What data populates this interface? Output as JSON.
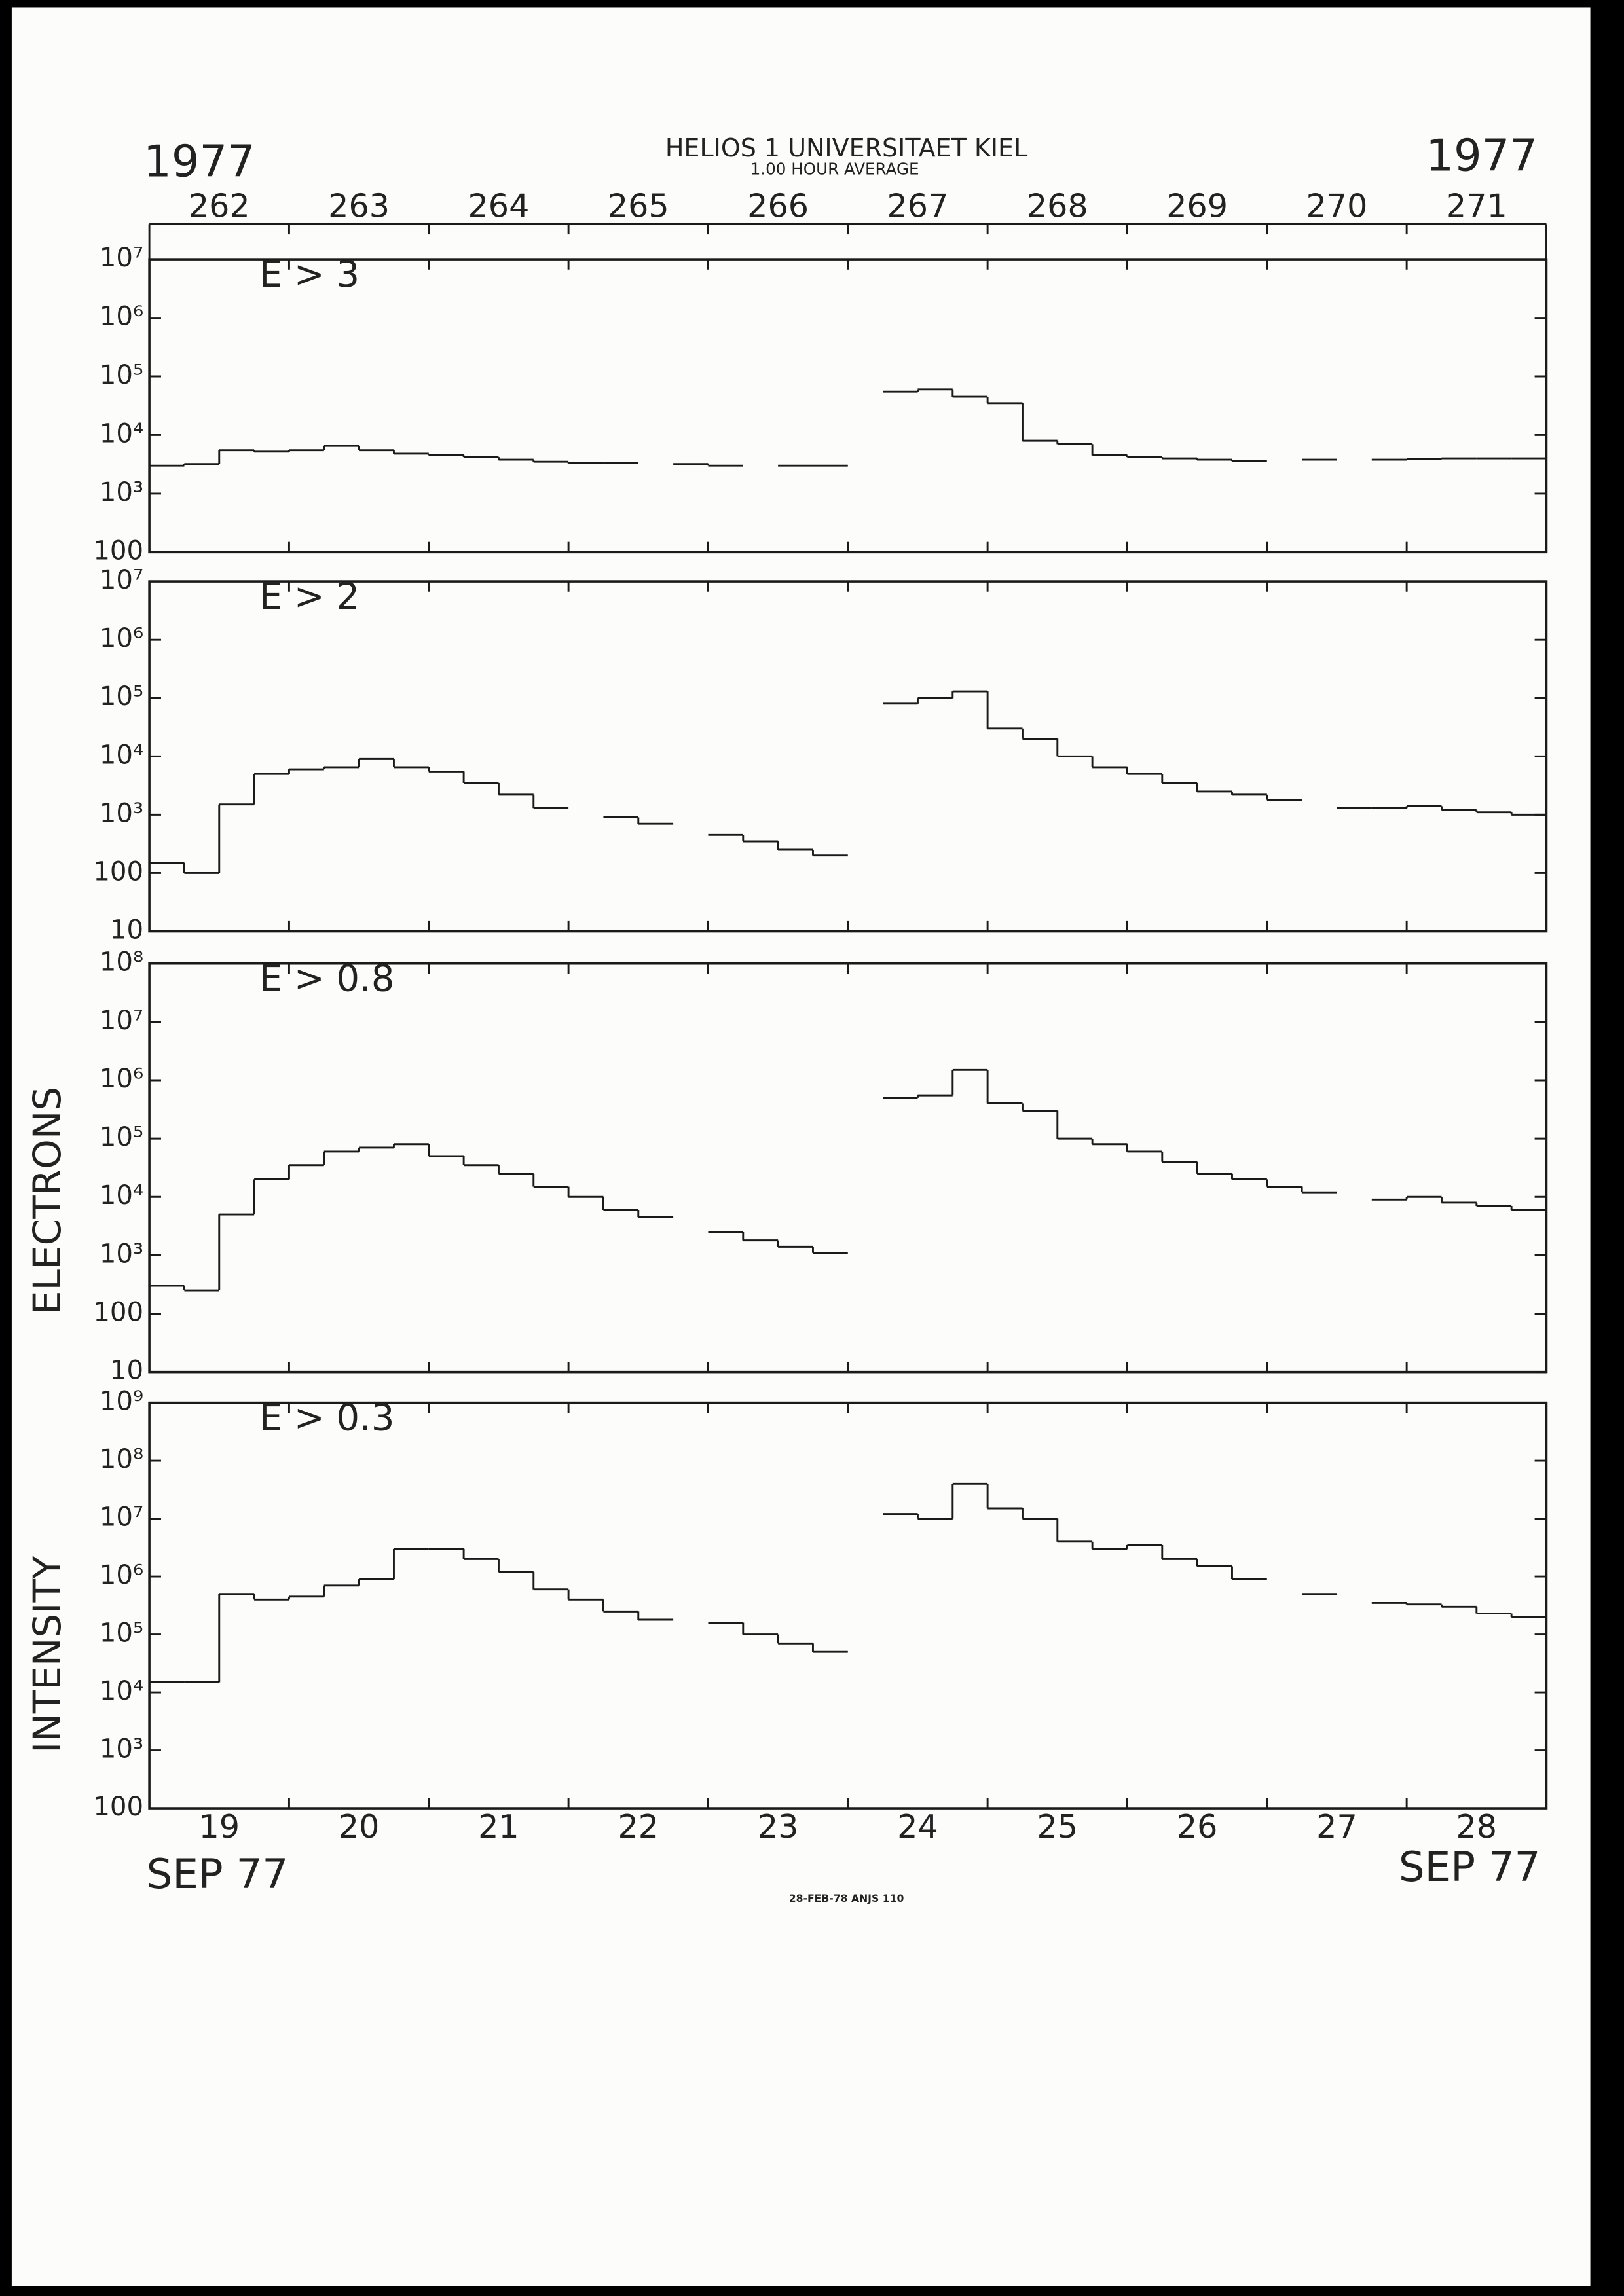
{
  "header": {
    "title": "HELIOS 1  UNIVERSITAET KIEL",
    "subtitle": "1.00 HOUR AVERAGE",
    "year_left": "1977",
    "year_right": "1977"
  },
  "footer": {
    "month_left": "SEP 77",
    "month_right": "SEP 77",
    "stamp": "28-FEB-78 ANJS 110"
  },
  "y_label_parts": [
    "INTENSITY",
    "ELECTRONS"
  ],
  "chart_data": [
    {
      "type": "step",
      "title": "E > 3",
      "ylog": true,
      "xlim": [
        19,
        29
      ],
      "xticks": [
        20,
        21,
        22,
        23,
        24,
        25,
        26,
        27,
        28
      ],
      "x2labels": [
        {
          "value": 19.5,
          "label": "262"
        },
        {
          "value": 20.5,
          "label": "263"
        },
        {
          "value": 21.5,
          "label": "264"
        },
        {
          "value": 22.5,
          "label": "265"
        },
        {
          "value": 23.5,
          "label": "266"
        },
        {
          "value": 24.5,
          "label": "267"
        },
        {
          "value": 25.5,
          "label": "268"
        },
        {
          "value": 26.5,
          "label": "269"
        },
        {
          "value": 27.5,
          "label": "270"
        },
        {
          "value": 28.5,
          "label": "271"
        }
      ],
      "ylim": [
        100,
        10000000
      ],
      "yticks": [
        100,
        {
          "value": 1000,
          "label": "10³"
        },
        {
          "value": 10000,
          "label": "10⁴"
        },
        {
          "value": 100000,
          "label": "10⁵"
        },
        {
          "value": 1000000,
          "label": "10⁶"
        },
        {
          "value": 10000000,
          "label": "10⁷"
        }
      ],
      "color": "#1a1a1a",
      "x": [
        19,
        19.25,
        19.5,
        19.75,
        20,
        20.25,
        20.5,
        20.75,
        21,
        21.25,
        21.5,
        21.75,
        22,
        22.25,
        22.5,
        22.75,
        23,
        23.25,
        23.5,
        23.75,
        24,
        24.25,
        24.5,
        24.75,
        25,
        25.25,
        25.5,
        25.75,
        26,
        26.25,
        26.5,
        26.75,
        27,
        27.25,
        27.5,
        27.75,
        28,
        28.25,
        28.5,
        28.75
      ],
      "values": [
        3000,
        3200,
        5500,
        5200,
        5500,
        6500,
        5500,
        4800,
        4500,
        4200,
        3800,
        3500,
        3300,
        3300,
        null,
        3200,
        3000,
        null,
        3000,
        3000,
        null,
        55000,
        60000,
        45000,
        35000,
        8000,
        7000,
        4500,
        4200,
        4000,
        3800,
        3600,
        null,
        3800,
        null,
        3800,
        3900,
        4000,
        4000,
        4000
      ]
    },
    {
      "type": "step",
      "title": "E > 2",
      "ylog": true,
      "xlim": [
        19,
        29
      ],
      "xticks": [
        20,
        21,
        22,
        23,
        24,
        25,
        26,
        27,
        28
      ],
      "ylim": [
        10,
        10000000
      ],
      "yticks": [
        10,
        100,
        {
          "value": 1000,
          "label": "10³"
        },
        {
          "value": 10000,
          "label": "10⁴"
        },
        {
          "value": 100000,
          "label": "10⁵"
        },
        {
          "value": 1000000,
          "label": "10⁶"
        },
        {
          "value": 10000000,
          "label": "10⁷"
        }
      ],
      "color": "#1a1a1a",
      "x": [
        19,
        19.25,
        19.5,
        19.75,
        20,
        20.25,
        20.5,
        20.75,
        21,
        21.25,
        21.5,
        21.75,
        22,
        22.25,
        22.5,
        22.75,
        23,
        23.25,
        23.5,
        23.75,
        24,
        24.25,
        24.5,
        24.75,
        25,
        25.25,
        25.5,
        25.75,
        26,
        26.25,
        26.5,
        26.75,
        27,
        27.25,
        27.5,
        27.75,
        28,
        28.25,
        28.5,
        28.75
      ],
      "values": [
        150,
        100,
        1500,
        5000,
        6000,
        6500,
        9000,
        6500,
        5500,
        3500,
        2200,
        1300,
        null,
        900,
        700,
        null,
        450,
        350,
        250,
        200,
        null,
        80000,
        100000,
        130000,
        30000,
        20000,
        10000,
        6500,
        5000,
        3500,
        2500,
        2200,
        1800,
        null,
        1300,
        1300,
        1400,
        1200,
        1100,
        1000
      ]
    },
    {
      "type": "step",
      "title": "E > 0.8",
      "ylog": true,
      "xlim": [
        19,
        29
      ],
      "xticks": [
        20,
        21,
        22,
        23,
        24,
        25,
        26,
        27,
        28
      ],
      "ylim": [
        10,
        100000000
      ],
      "yticks": [
        10,
        100,
        {
          "value": 1000,
          "label": "10³"
        },
        {
          "value": 10000,
          "label": "10⁴"
        },
        {
          "value": 100000,
          "label": "10⁵"
        },
        {
          "value": 1000000,
          "label": "10⁶"
        },
        {
          "value": 10000000,
          "label": "10⁷"
        },
        {
          "value": 100000000,
          "label": "10⁸"
        }
      ],
      "color": "#1a1a1a",
      "x": [
        19,
        19.25,
        19.5,
        19.75,
        20,
        20.25,
        20.5,
        20.75,
        21,
        21.25,
        21.5,
        21.75,
        22,
        22.25,
        22.5,
        22.75,
        23,
        23.25,
        23.5,
        23.75,
        24,
        24.25,
        24.5,
        24.75,
        25,
        25.25,
        25.5,
        25.75,
        26,
        26.25,
        26.5,
        26.75,
        27,
        27.25,
        27.5,
        27.75,
        28,
        28.25,
        28.5,
        28.75
      ],
      "values": [
        300,
        250,
        5000,
        20000,
        35000,
        60000,
        70000,
        80000,
        50000,
        35000,
        25000,
        15000,
        10000,
        6000,
        4500,
        null,
        2500,
        1800,
        1400,
        1100,
        null,
        500000,
        550000,
        1500000,
        400000,
        300000,
        100000,
        80000,
        60000,
        40000,
        25000,
        20000,
        15000,
        12000,
        null,
        9000,
        10000,
        8000,
        7000,
        6000
      ]
    },
    {
      "type": "step",
      "title": "E > 0.3",
      "ylog": true,
      "xlim": [
        19,
        29
      ],
      "xticks": [
        20,
        21,
        22,
        23,
        24,
        25,
        26,
        27,
        28
      ],
      "xlabels": [
        {
          "value": 19.5,
          "label": "19"
        },
        {
          "value": 20.5,
          "label": "20"
        },
        {
          "value": 21.5,
          "label": "21"
        },
        {
          "value": 22.5,
          "label": "22"
        },
        {
          "value": 23.5,
          "label": "23"
        },
        {
          "value": 24.5,
          "label": "24"
        },
        {
          "value": 25.5,
          "label": "25"
        },
        {
          "value": 26.5,
          "label": "26"
        },
        {
          "value": 27.5,
          "label": "27"
        },
        {
          "value": 28.5,
          "label": "28"
        }
      ],
      "ylim": [
        100,
        1000000000
      ],
      "yticks": [
        100,
        {
          "value": 1000,
          "label": "10³"
        },
        {
          "value": 10000,
          "label": "10⁴"
        },
        {
          "value": 100000,
          "label": "10⁵"
        },
        {
          "value": 1000000,
          "label": "10⁶"
        },
        {
          "value": 10000000,
          "label": "10⁷"
        },
        {
          "value": 100000000,
          "label": "10⁸"
        },
        {
          "value": 1000000000,
          "label": "10⁹"
        }
      ],
      "color": "#1a1a1a",
      "x": [
        19,
        19.25,
        19.5,
        19.75,
        20,
        20.25,
        20.5,
        20.75,
        21,
        21.25,
        21.5,
        21.75,
        22,
        22.25,
        22.5,
        22.75,
        23,
        23.25,
        23.5,
        23.75,
        24,
        24.25,
        24.5,
        24.75,
        25,
        25.25,
        25.5,
        25.75,
        26,
        26.25,
        26.5,
        26.75,
        27,
        27.25,
        27.5,
        27.75,
        28,
        28.25,
        28.5,
        28.75
      ],
      "values": [
        15000,
        15000,
        500000,
        400000,
        450000,
        700000,
        900000,
        3000000,
        3000000,
        2000000,
        1200000,
        600000,
        400000,
        250000,
        180000,
        null,
        160000,
        100000,
        70000,
        50000,
        null,
        12000000,
        10000000,
        40000000,
        15000000,
        10000000,
        4000000,
        3000000,
        3500000,
        2000000,
        1500000,
        900000,
        null,
        500000,
        null,
        350000,
        330000,
        300000,
        230000,
        200000
      ]
    }
  ]
}
